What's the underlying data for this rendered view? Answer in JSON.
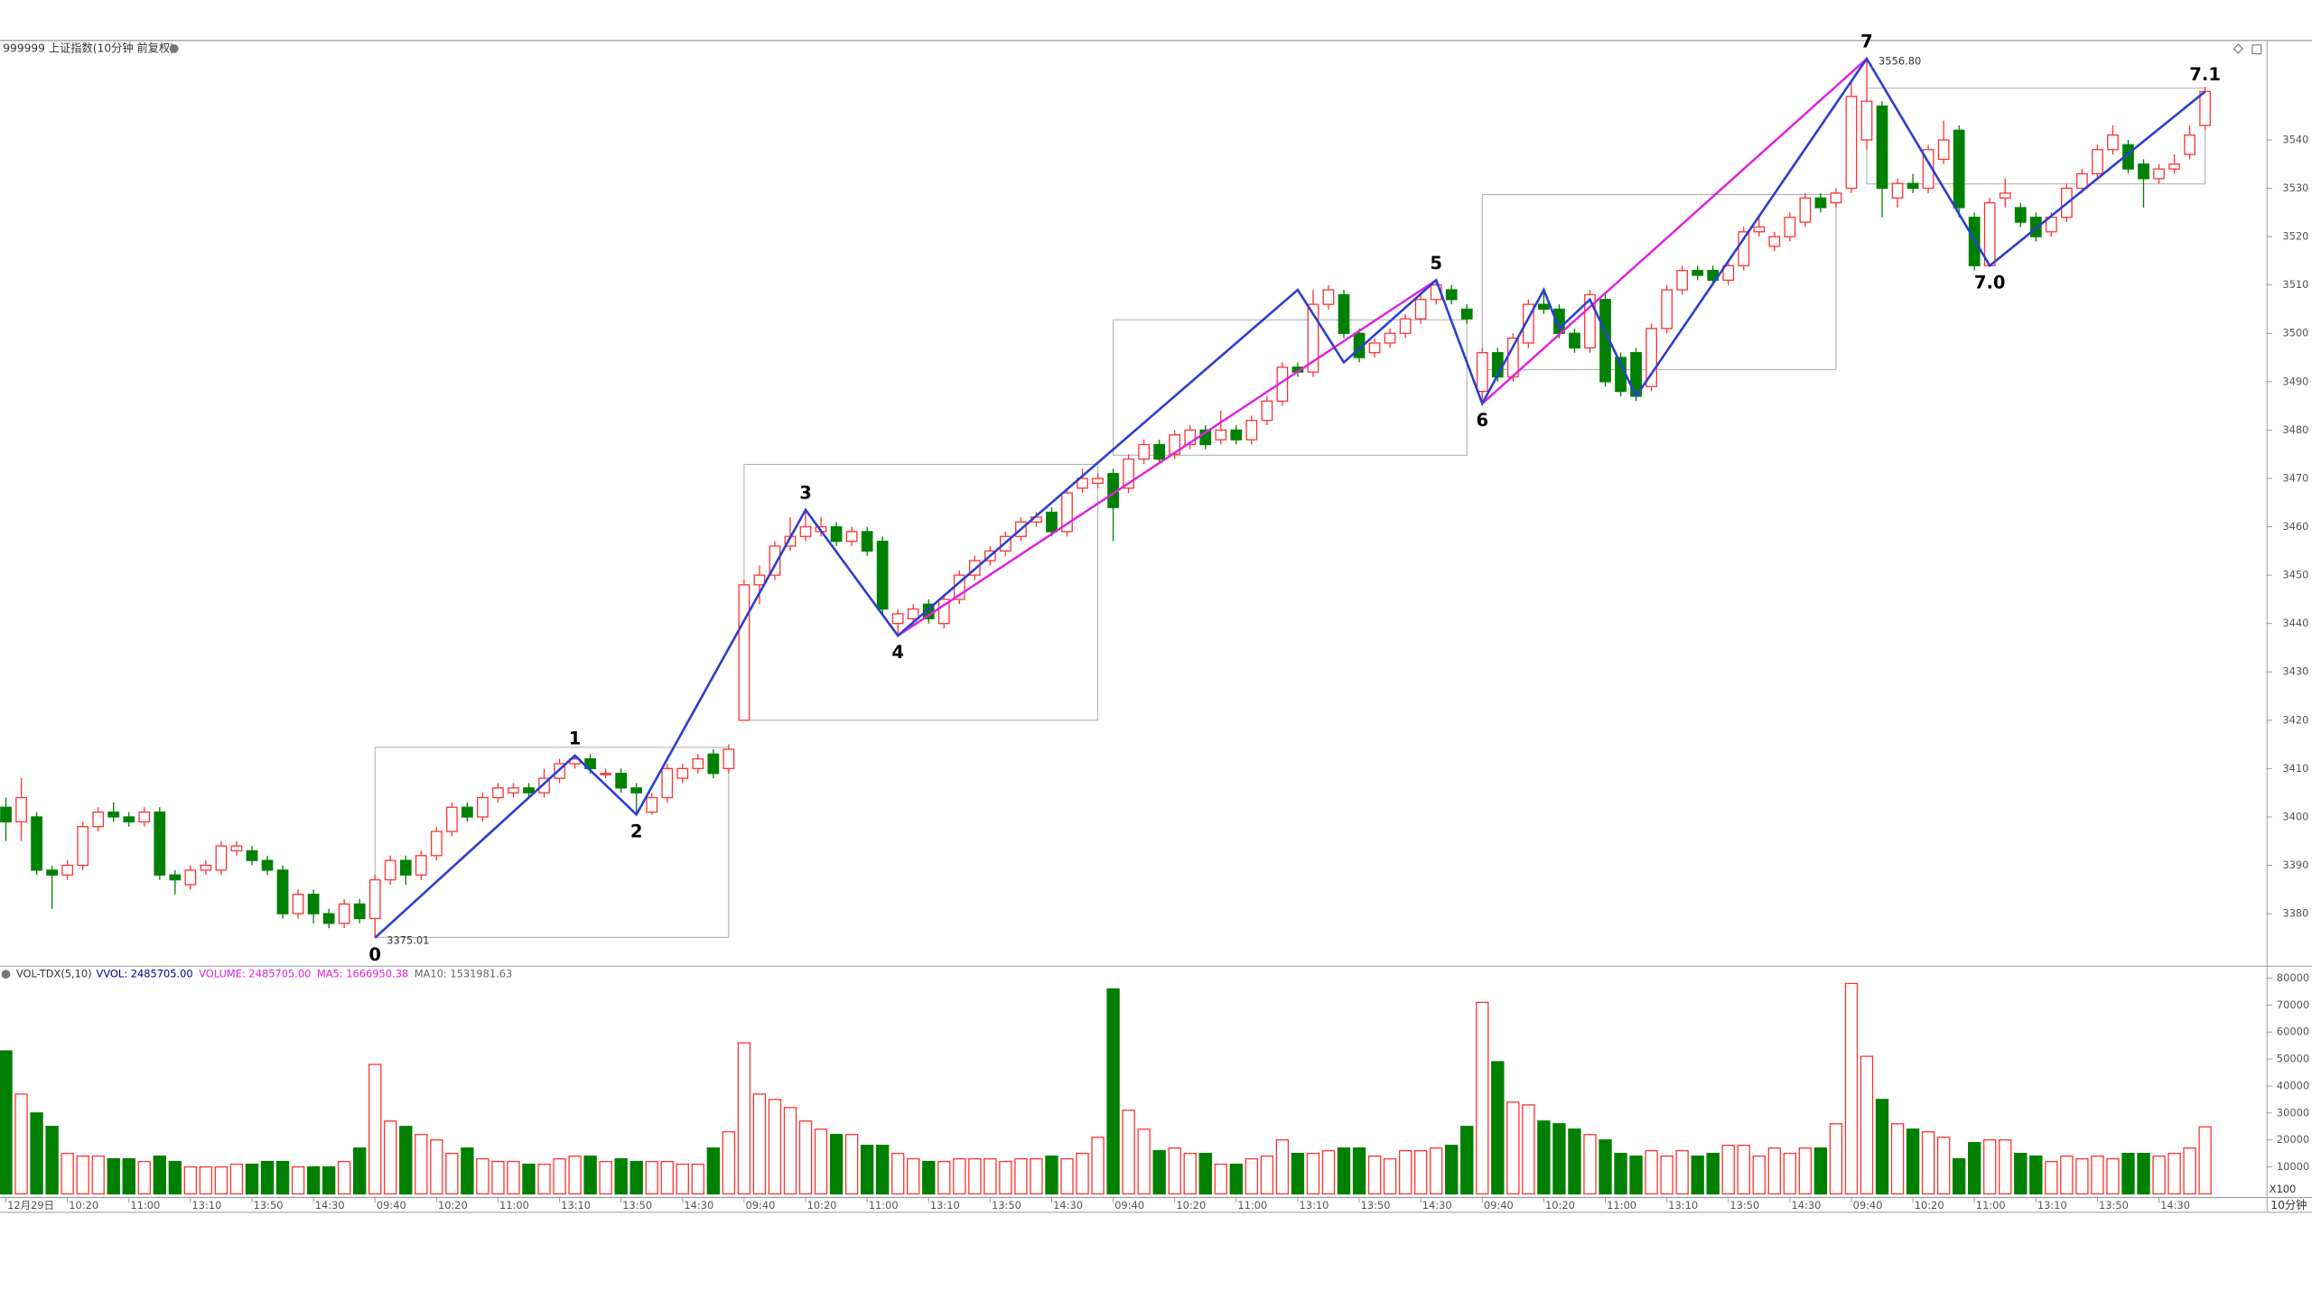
{
  "chart_data": [
    {
      "type": "candlestick",
      "title": "999999 上证指数(10分钟 前复权)",
      "open": [
        3402,
        3399,
        3400,
        3389,
        3388,
        3390,
        3398,
        3401,
        3400,
        3399,
        3401,
        3388,
        3386,
        3389,
        3389,
        3393,
        3393,
        3391,
        3389,
        3380,
        3384,
        3380,
        3378,
        3382,
        3379,
        3387,
        3391,
        3388,
        3392,
        3397,
        3402,
        3400,
        3404,
        3405,
        3406,
        3405,
        3408,
        3411,
        3412,
        3409,
        3409,
        3406,
        3401,
        3404,
        3408,
        3410,
        3413,
        3410,
        3420,
        3448,
        3450,
        3456,
        3458,
        3459,
        3460,
        3457,
        3459,
        3457,
        3440,
        3441,
        3444,
        3440,
        3445,
        3450,
        3453,
        3455,
        3458,
        3461,
        3463,
        3459,
        3468,
        3469,
        3471,
        3468,
        3474,
        3477,
        3475,
        3477,
        3480,
        3478,
        3480,
        3478,
        3482,
        3486,
        3493,
        3492,
        3506,
        3508,
        3500,
        3496,
        3498,
        3500,
        3503,
        3507,
        3509,
        3505,
        3488,
        3496,
        3491,
        3498,
        3506,
        3505,
        3500,
        3497,
        3507,
        3495,
        3496,
        3489,
        3501,
        3509,
        3513,
        3513,
        3511,
        3514,
        3521,
        3518,
        3520,
        3523,
        3528,
        3527,
        3530,
        3540,
        3547,
        3528,
        3531,
        3530,
        3536,
        3542,
        3524,
        3514,
        3528,
        3526,
        3524,
        3521,
        3524,
        3530,
        3533,
        3538,
        3539,
        3535,
        3532,
        3534,
        3537,
        3543
      ],
      "high": [
        3404,
        3408,
        3401,
        3390,
        3391,
        3399,
        3402,
        3403,
        3401,
        3402,
        3402,
        3389,
        3390,
        3391,
        3395,
        3395,
        3394,
        3392,
        3390,
        3385,
        3385,
        3381,
        3383,
        3383,
        3388,
        3392,
        3392,
        3393,
        3398,
        3403,
        3403,
        3405,
        3407,
        3407,
        3407,
        3410,
        3412,
        3412.7,
        3413,
        3410,
        3410,
        3407,
        3405,
        3411,
        3411,
        3413,
        3414,
        3415,
        3449,
        3452,
        3457,
        3462,
        3463.5,
        3462,
        3461,
        3460,
        3460,
        3458,
        3443,
        3444,
        3445,
        3446,
        3451,
        3454,
        3456,
        3459,
        3462,
        3463,
        3464,
        3468,
        3472,
        3471,
        3472,
        3475,
        3478,
        3478,
        3480,
        3481,
        3481,
        3484,
        3481,
        3483,
        3487,
        3494,
        3494,
        3509,
        3510,
        3509,
        3501,
        3499,
        3501,
        3504,
        3508,
        3511,
        3510,
        3506,
        3497,
        3497,
        3500,
        3507,
        3509,
        3506,
        3501,
        3509,
        3508,
        3496,
        3497,
        3502,
        3510,
        3514,
        3514,
        3514,
        3515,
        3522,
        3524,
        3521,
        3525,
        3529,
        3529,
        3530,
        3552,
        3556.8,
        3548,
        3532,
        3533,
        3539,
        3544,
        3543,
        3525,
        3528,
        3532,
        3527,
        3525,
        3525,
        3531,
        3534,
        3539,
        3543,
        3540,
        3536,
        3535,
        3537,
        3543,
        3551
      ],
      "low": [
        3395,
        3395,
        3388,
        3381,
        3387,
        3389,
        3397,
        3399,
        3398,
        3398,
        3387,
        3384,
        3385,
        3388,
        3388,
        3392,
        3390,
        3388,
        3379,
        3379,
        3378,
        3377,
        3377,
        3378,
        3375.01,
        3386,
        3386,
        3387,
        3391,
        3396,
        3399,
        3399,
        3403,
        3404,
        3404,
        3404,
        3407,
        3410,
        3409,
        3408,
        3405,
        3400.5,
        3400.5,
        3403,
        3407,
        3409,
        3408,
        3409,
        3420,
        3444,
        3449,
        3455,
        3457,
        3458,
        3456,
        3456,
        3454,
        3442,
        3437.5,
        3440,
        3440,
        3439,
        3444,
        3449,
        3452,
        3454,
        3457,
        3460,
        3458,
        3458,
        3467,
        3468,
        3457,
        3467,
        3473,
        3473,
        3474,
        3476,
        3476,
        3477,
        3477,
        3477,
        3481,
        3485,
        3491,
        3491,
        3505,
        3499,
        3494,
        3495,
        3497,
        3499,
        3502,
        3506,
        3506,
        3502,
        3485.5,
        3490,
        3490,
        3497,
        3504,
        3499,
        3496,
        3496,
        3489,
        3487,
        3486,
        3488,
        3500,
        3508,
        3511,
        3510,
        3510,
        3513,
        3520,
        3517,
        3519,
        3522,
        3525,
        3526,
        3529,
        3538,
        3524,
        3526,
        3529,
        3529,
        3535,
        3524,
        3513,
        3514,
        3526,
        3522,
        3519,
        3520,
        3523,
        3529,
        3532,
        3537,
        3533,
        3526,
        3531,
        3533,
        3536,
        3542
      ],
      "close": [
        3399,
        3404,
        3389,
        3388,
        3390,
        3398,
        3401,
        3400,
        3399,
        3401,
        3388,
        3387,
        3389,
        3390,
        3394,
        3394,
        3391,
        3389,
        3380,
        3384,
        3380,
        3378,
        3382,
        3379,
        3387,
        3391,
        3388,
        3392,
        3397,
        3402,
        3400,
        3404,
        3406,
        3406,
        3405,
        3408,
        3411,
        3412,
        3410,
        3409,
        3406,
        3405,
        3404,
        3410,
        3410,
        3412,
        3409,
        3414,
        3448,
        3450,
        3456,
        3458,
        3460,
        3460,
        3457,
        3459,
        3455,
        3443,
        3442,
        3443,
        3441,
        3445,
        3450,
        3453,
        3455,
        3458,
        3461,
        3462,
        3459,
        3467,
        3470,
        3470,
        3464,
        3474,
        3477,
        3474,
        3479,
        3480,
        3477,
        3480,
        3478,
        3482,
        3486,
        3493,
        3492,
        3506,
        3509,
        3500,
        3495,
        3498,
        3500,
        3503,
        3507,
        3510,
        3507,
        3503,
        3496,
        3491,
        3499,
        3506,
        3505,
        3500,
        3497,
        3508,
        3490,
        3488,
        3487,
        3501,
        3509,
        3513,
        3512,
        3511,
        3514,
        3521,
        3522,
        3520,
        3524,
        3528,
        3526,
        3529,
        3549,
        3548,
        3530,
        3531,
        3530,
        3538,
        3540,
        3526,
        3514,
        3527,
        3529,
        3523,
        3520,
        3524,
        3530,
        3533,
        3538,
        3541,
        3534,
        3532,
        3534,
        3535,
        3541,
        3550
      ],
      "up_color": "#ff3232",
      "down_color": "#008000",
      "ylim": [
        3369.3,
        3560.4
      ],
      "yticks": [
        3380,
        3390,
        3400,
        3410,
        3420,
        3430,
        3440,
        3450,
        3460,
        3470,
        3480,
        3490,
        3500,
        3510,
        3520,
        3530,
        3540
      ],
      "zigzag": {
        "color": "#2b3fd1",
        "x": [
          24,
          37,
          41,
          52,
          58,
          84,
          87,
          93,
          96,
          100,
          101,
          103,
          106,
          121,
          129,
          143
        ],
        "y": [
          3375.01,
          3412.7,
          3400.5,
          3463.5,
          3437.5,
          3509,
          3494,
          3511,
          3485.5,
          3509,
          3501,
          3507,
          3487,
          3556.8,
          3514,
          3550
        ]
      },
      "trend_lines": {
        "color": "#e020e0",
        "segments": [
          {
            "x": [
              58,
              93
            ],
            "y": [
              3437.5,
              3511
            ]
          },
          {
            "x": [
              96,
              121
            ],
            "y": [
              3485.5,
              3556.8
            ]
          }
        ]
      },
      "pivots": [
        {
          "label": "0",
          "x": 24,
          "y": 3375.01
        },
        {
          "label": "1",
          "x": 37,
          "y": 3412.7
        },
        {
          "label": "2",
          "x": 41,
          "y": 3400.5
        },
        {
          "label": "3",
          "x": 52,
          "y": 3463.5
        },
        {
          "label": "4",
          "x": 58,
          "y": 3437.5
        },
        {
          "label": "5",
          "x": 93,
          "y": 3511
        },
        {
          "label": "6",
          "x": 96,
          "y": 3485.5
        },
        {
          "label": "7",
          "x": 121,
          "y": 3556.8
        },
        {
          "label": "7.0",
          "x": 129,
          "y": 3514
        },
        {
          "label": "7.1",
          "x": 143,
          "y": 3550
        }
      ],
      "price_labels": [
        {
          "x": 24,
          "value": 3375.01,
          "label": "3375.01"
        },
        {
          "x": 121,
          "value": 3556.8,
          "label": "3556.80"
        }
      ],
      "boxes": [
        {
          "x": [
            24,
            47
          ],
          "y": [
            3375.1,
            3414.4
          ]
        },
        {
          "x": [
            48,
            71
          ],
          "y": [
            3420,
            3472.9
          ]
        },
        {
          "x": [
            72,
            95
          ],
          "y": [
            3474.8,
            3502.8
          ]
        },
        {
          "x": [
            96,
            119
          ],
          "y": [
            3492.5,
            3528.7
          ]
        },
        {
          "x": [
            121,
            143
          ],
          "y": [
            3530.9,
            3550.7
          ]
        }
      ]
    },
    {
      "type": "bar",
      "title": "VOL-TDX(5,10)",
      "legend_items": [
        {
          "text": "VVOL: 2485705.00",
          "color": "#000080"
        },
        {
          "text": "VOLUME: 2485705.00",
          "color": "#e020e0"
        },
        {
          "text": "MA5: 1666950.38",
          "color": "#e020e0"
        },
        {
          "text": "MA10: 1531981.63",
          "color": "#666666"
        }
      ],
      "categories": [
        "12月29日",
        null,
        null,
        null,
        "10:20",
        null,
        null,
        null,
        "11:00",
        null,
        null,
        null,
        "13:10",
        null,
        null,
        null,
        "13:50",
        null,
        null,
        null,
        "14:30",
        null,
        null,
        null,
        "09:40",
        null,
        null,
        null,
        "10:20",
        null,
        null,
        null,
        "11:00",
        null,
        null,
        null,
        "13:10",
        null,
        null,
        null,
        "13:50",
        null,
        null,
        null,
        "14:30",
        null,
        null,
        null,
        "09:40",
        null,
        null,
        null,
        "10:20",
        null,
        null,
        null,
        "11:00",
        null,
        null,
        null,
        "13:10",
        null,
        null,
        null,
        "13:50",
        null,
        null,
        null,
        "14:30",
        null,
        null,
        null,
        "09:40",
        null,
        null,
        null,
        "10:20",
        null,
        null,
        null,
        "11:00",
        null,
        null,
        null,
        "13:10",
        null,
        null,
        null,
        "13:50",
        null,
        null,
        null,
        "14:30",
        null,
        null,
        null,
        "09:40",
        null,
        null,
        null,
        "10:20",
        null,
        null,
        null,
        "11:00",
        null,
        null,
        null,
        "13:10",
        null,
        null,
        null,
        "13:50",
        null,
        null,
        null,
        "14:30",
        null,
        null,
        null,
        "09:40",
        null,
        null,
        null,
        "10:20",
        null,
        null,
        null,
        "11:00",
        null,
        null,
        null,
        "13:10",
        null,
        null,
        null,
        "13:50",
        null,
        null,
        null,
        "14:30",
        null,
        null,
        null
      ],
      "values": [
        53000,
        37000,
        30000,
        25000,
        15000,
        14000,
        14000,
        13000,
        13000,
        12000,
        14000,
        12000,
        10000,
        10000,
        10000,
        11000,
        11000,
        12000,
        12000,
        10000,
        10000,
        10000,
        12000,
        17000,
        48000,
        27000,
        25000,
        22000,
        20000,
        15000,
        17000,
        13000,
        12000,
        12000,
        11000,
        11000,
        13000,
        14000,
        14000,
        12000,
        13000,
        12000,
        12000,
        12000,
        11000,
        11000,
        17000,
        23000,
        56000,
        37000,
        35000,
        32000,
        27000,
        24000,
        22000,
        22000,
        18000,
        18000,
        15000,
        13000,
        12000,
        12000,
        13000,
        13000,
        13000,
        12000,
        13000,
        13000,
        14000,
        13000,
        15000,
        21000,
        76000,
        31000,
        24000,
        16000,
        17000,
        15000,
        15000,
        11000,
        11000,
        13000,
        14000,
        20000,
        15000,
        15000,
        16000,
        17000,
        17000,
        14000,
        13000,
        16000,
        16000,
        17000,
        18000,
        25000,
        71000,
        49000,
        34000,
        33000,
        27000,
        26000,
        24000,
        22000,
        20000,
        15000,
        14000,
        16000,
        14000,
        16000,
        14000,
        15000,
        18000,
        18000,
        14000,
        17000,
        15000,
        17000,
        17000,
        26000,
        78000,
        51000,
        35000,
        26000,
        24000,
        23000,
        21000,
        13000,
        19000,
        20000,
        20000,
        15000,
        14000,
        12000,
        14000,
        13000,
        14000,
        13000,
        15000,
        15000,
        14000,
        15000,
        17000,
        24857.05
      ],
      "ylim": [
        0,
        84700
      ],
      "yticks": [
        10000,
        20000,
        30000,
        40000,
        50000,
        60000,
        70000,
        80000
      ],
      "unit_label": "X100",
      "period_label": "10分钟"
    }
  ]
}
